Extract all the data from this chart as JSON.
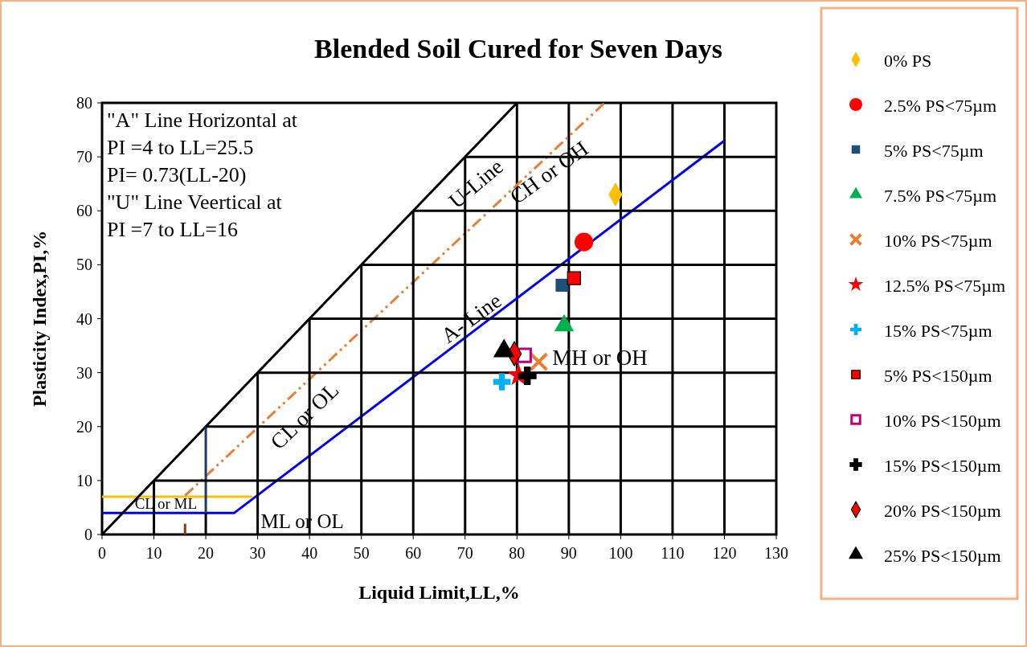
{
  "chart_data": {
    "type": "scatter",
    "title": "Blended Soil Cured for Seven Days",
    "xlabel": "Liquid Limit,LL,%",
    "ylabel": "Plasticity Index,PI,%",
    "xlim": [
      0,
      130
    ],
    "ylim": [
      0,
      80
    ],
    "xticks": [
      0,
      10,
      20,
      30,
      40,
      50,
      60,
      70,
      80,
      90,
      100,
      110,
      120,
      130
    ],
    "yticks": [
      0,
      10,
      20,
      30,
      40,
      50,
      60,
      70,
      80
    ],
    "grid": true,
    "legend": "right",
    "annotations": [
      "\"A\" Line Horizontal at",
      "PI =4 to LL=25.5",
      "PI= 0.73(LL-20)",
      "\"U\" Line Veertical at",
      " PI =7 to LL=16",
      "CL or ML",
      "ML or OL",
      "CL or OL",
      "A- Line",
      "U-Line",
      "CH or OH",
      "MH or OH"
    ],
    "series": [
      {
        "type": "line",
        "color": "#0000ff",
        "x": [
          0,
          25.5,
          120
        ],
        "values": [
          4,
          4,
          73
        ],
        "line_style": "solid"
      },
      {
        "type": "line",
        "color": "#ffc000",
        "x": [
          0,
          29
        ],
        "values": [
          7,
          7
        ],
        "line_style": "solid"
      },
      {
        "type": "line",
        "color": "#ed7d31",
        "x": [
          16,
          96.9
        ],
        "values": [
          7.2,
          80
        ],
        "line_style": "dashed"
      },
      {
        "type": "line",
        "color": "#000000",
        "x": [
          0,
          80
        ],
        "values": [
          0,
          80
        ],
        "line_style": "solid"
      },
      {
        "type": "line",
        "color": "#1f3864",
        "x": [
          20,
          20
        ],
        "values": [
          4,
          20
        ],
        "line_style": "solid"
      },
      {
        "type": "line",
        "color": "#843c0c",
        "x": [
          16,
          16
        ],
        "values": [
          0,
          2
        ],
        "line_style": "solid"
      },
      {
        "type": "line",
        "color": "#000000",
        "x": [
          10,
          10
        ],
        "values": [
          0,
          10
        ],
        "line_style": "solid"
      },
      {
        "type": "line",
        "color": "#000000",
        "x": [
          20,
          20
        ],
        "values": [
          0,
          4
        ],
        "line_style": "solid"
      },
      {
        "type": "line",
        "color": "#000000",
        "x": [
          30,
          30
        ],
        "values": [
          0,
          30
        ],
        "line_style": "solid"
      },
      {
        "type": "line",
        "color": "#000000",
        "x": [
          40,
          40
        ],
        "values": [
          0,
          40
        ],
        "line_style": "solid"
      },
      {
        "type": "line",
        "color": "#000000",
        "x": [
          50,
          50
        ],
        "values": [
          0,
          50
        ],
        "line_style": "solid"
      },
      {
        "type": "line",
        "color": "#000000",
        "x": [
          60,
          60
        ],
        "values": [
          0,
          60
        ],
        "line_style": "solid"
      },
      {
        "type": "line",
        "color": "#000000",
        "x": [
          70,
          70
        ],
        "values": [
          0,
          70
        ],
        "line_style": "solid"
      },
      {
        "type": "line",
        "color": "#000000",
        "x": [
          10,
          130
        ],
        "values": [
          10,
          10
        ],
        "line_style": "solid"
      },
      {
        "type": "line",
        "color": "#000000",
        "x": [
          20,
          130
        ],
        "values": [
          20,
          20
        ],
        "line_style": "solid"
      },
      {
        "type": "line",
        "color": "#000000",
        "x": [
          30,
          130
        ],
        "values": [
          30,
          30
        ],
        "line_style": "solid"
      },
      {
        "type": "line",
        "color": "#000000",
        "x": [
          40,
          130
        ],
        "values": [
          40,
          40
        ],
        "line_style": "solid"
      },
      {
        "type": "line",
        "color": "#000000",
        "x": [
          50,
          130
        ],
        "values": [
          50,
          50
        ],
        "line_style": "solid"
      },
      {
        "type": "line",
        "color": "#000000",
        "x": [
          60,
          130
        ],
        "values": [
          60,
          60
        ],
        "line_style": "solid"
      },
      {
        "type": "line",
        "color": "#000000",
        "x": [
          70,
          130
        ],
        "values": [
          70,
          70
        ],
        "line_style": "solid"
      },
      {
        "name": "0% PS",
        "color": "#ffc000",
        "marker": "diamond",
        "x": [
          99
        ],
        "values": [
          63
        ]
      },
      {
        "name": "2.5% PS<75µm",
        "color": "#ff0000",
        "marker": "circle",
        "x": [
          92.9
        ],
        "values": [
          54.2
        ]
      },
      {
        "name": "5% PS<75µm",
        "color": "#1f4e79",
        "marker": "square",
        "x": [
          88.7
        ],
        "values": [
          46.2
        ]
      },
      {
        "name": "7.5% PS<75µm",
        "color": "#00b050",
        "marker": "triangle",
        "x": [
          89.1
        ],
        "values": [
          38.7
        ]
      },
      {
        "name": "10% PS<75µm",
        "color": "#ed7d31",
        "marker": "x",
        "x": [
          84.2
        ],
        "values": [
          32
        ]
      },
      {
        "name": "12.5% PS<75µm",
        "color": "#ff0000",
        "marker": "star",
        "x": [
          80.3
        ],
        "values": [
          29.5
        ]
      },
      {
        "name": "15% PS<75µm",
        "color": "#00b0f0",
        "marker": "cross",
        "x": [
          77.1
        ],
        "values": [
          28.3
        ]
      },
      {
        "name": "5% PS<150µm",
        "color": "#ff0000",
        "marker": "square",
        "x": [
          91
        ],
        "values": [
          47.5
        ]
      },
      {
        "name": "10% PS<150µm",
        "color": "#c0007a",
        "marker": "square",
        "x": [
          81.4
        ],
        "values": [
          33.2
        ]
      },
      {
        "name": "15% PS<150µm",
        "color": "#000000",
        "marker": "cross",
        "x": [
          82
        ],
        "values": [
          29.4
        ]
      },
      {
        "name": "20% PS<150µm",
        "color": "#ff0000",
        "marker": "diamond",
        "x": [
          79.5
        ],
        "values": [
          33.5
        ]
      },
      {
        "name": "25% PS<150µm",
        "color": "#000000",
        "marker": "triangle",
        "x": [
          77.5
        ],
        "values": [
          34
        ]
      }
    ]
  }
}
